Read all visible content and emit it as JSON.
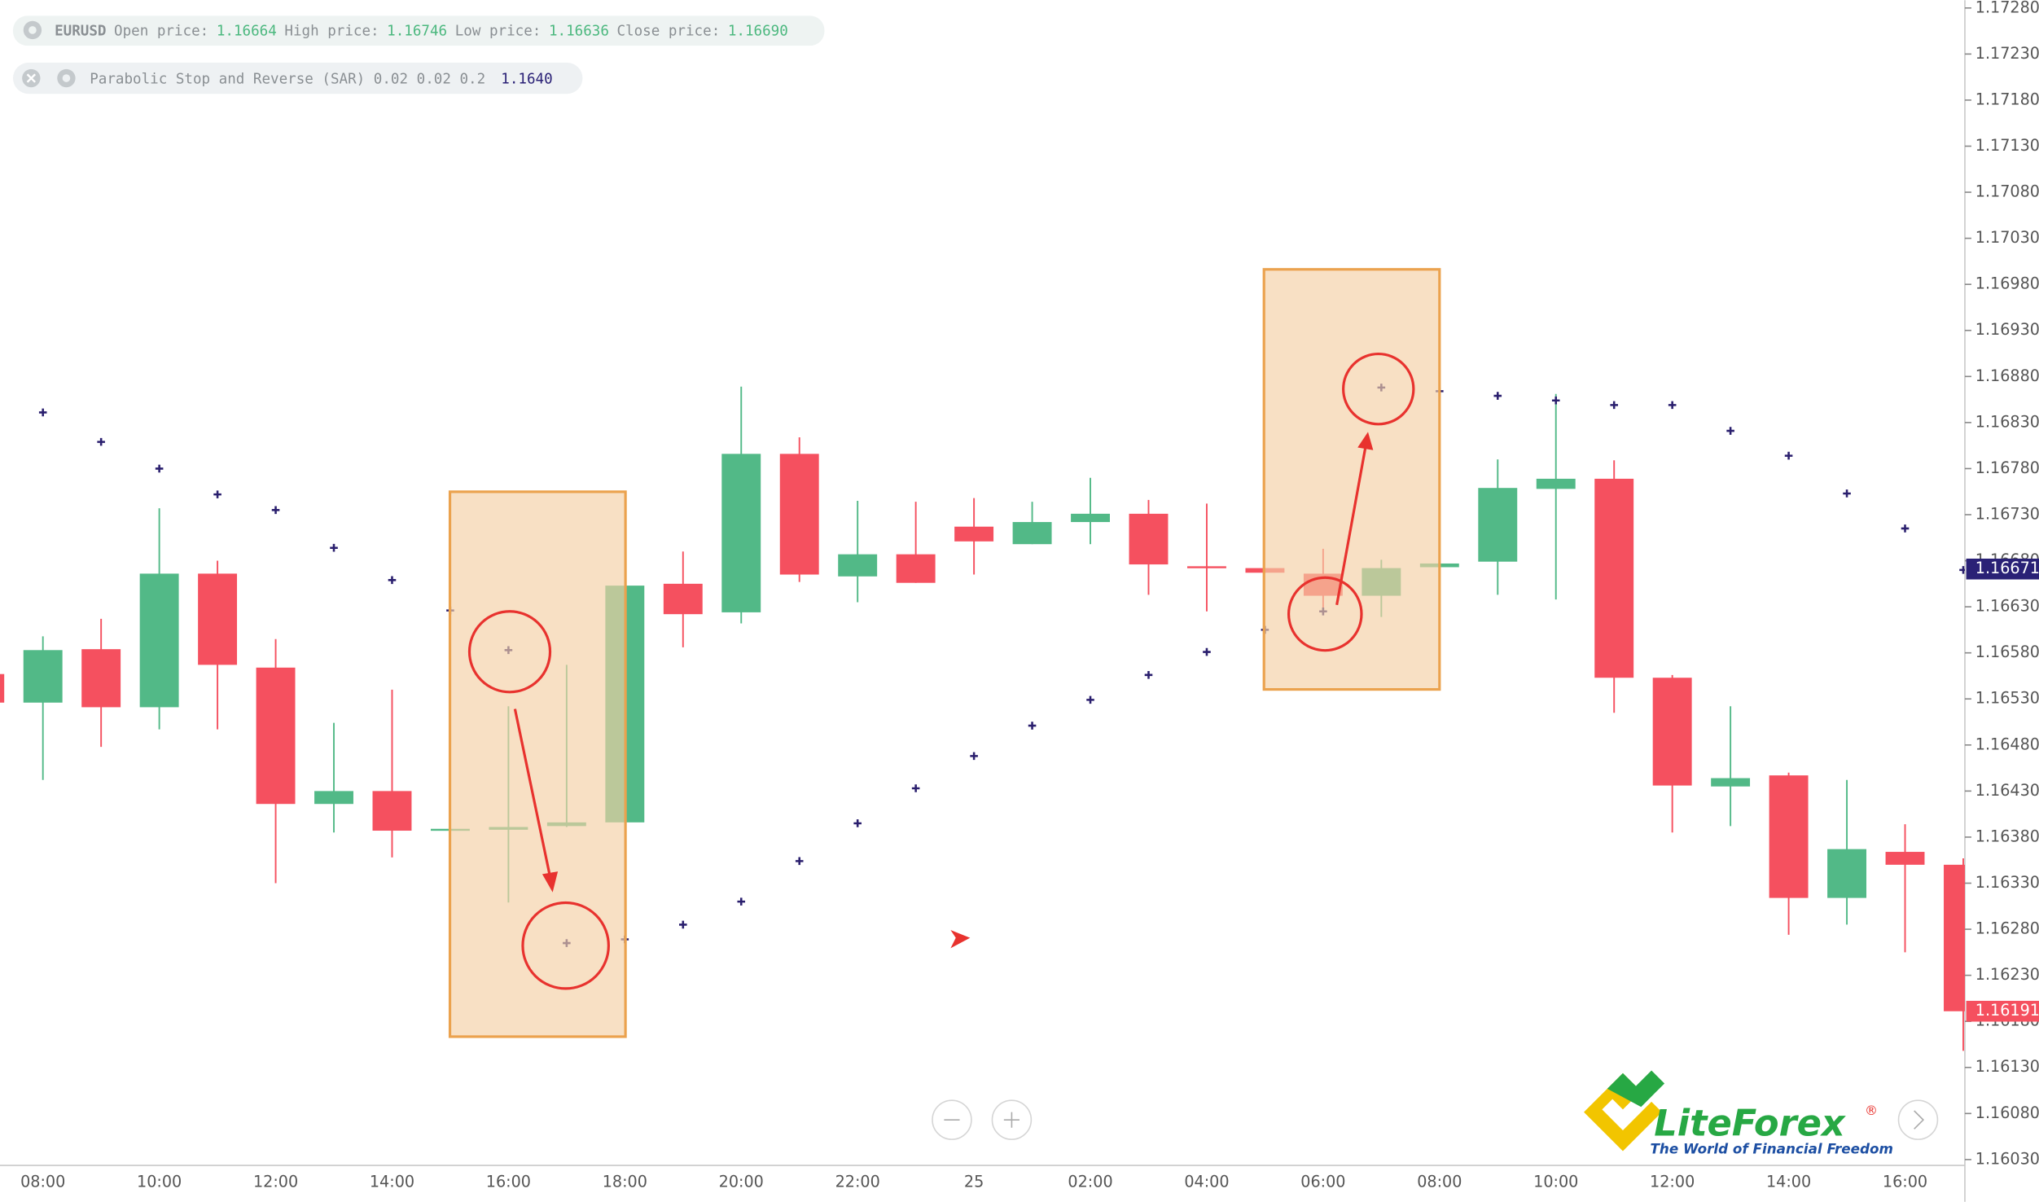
{
  "chart_data": {
    "type": "candlestick",
    "categories": [
      null,
      "08:00",
      null,
      "10:00",
      null,
      "12:00",
      null,
      "14:00",
      null,
      "16:00",
      null,
      "18:00",
      null,
      "20:00",
      null,
      "22:00",
      null,
      "25",
      null,
      "02:00",
      null,
      "04:00",
      null,
      "06:00",
      null,
      "08:00",
      null,
      "10:00",
      null,
      "12:00",
      null,
      "14:00",
      null,
      "16:00",
      null
    ],
    "series": [
      {
        "name": "EURUSD",
        "type": "candlestick",
        "up_color": "#52b987",
        "down_color": "#f5505f",
        "open": [
          1.16557,
          1.16526,
          1.16584,
          1.16521,
          1.16666,
          1.16564,
          1.16416,
          1.1643,
          1.16389,
          1.16388,
          1.16392,
          1.16396,
          1.16655,
          1.16624,
          1.16796,
          1.16663,
          1.16687,
          1.16717,
          1.16698,
          1.16722,
          1.16731,
          1.16674,
          1.16672,
          1.16666,
          1.16642,
          1.16673,
          1.16679,
          1.16758,
          1.16769,
          1.16553,
          1.16435,
          1.16447,
          1.16314,
          1.16364,
          1.1635
        ],
        "high": [
          1.16566,
          1.16598,
          1.16617,
          1.16737,
          1.1668,
          1.16595,
          1.16504,
          1.1654,
          1.16389,
          1.16522,
          1.16567,
          1.16653,
          1.1669,
          1.16869,
          1.16814,
          1.16745,
          1.16744,
          1.16748,
          1.16744,
          1.1677,
          1.16746,
          1.16742,
          1.16672,
          1.16693,
          1.16681,
          1.16677,
          1.1679,
          1.16861,
          1.16789,
          1.16556,
          1.16522,
          1.1645,
          1.16442,
          1.16394,
          1.16357
        ],
        "low": [
          1.16519,
          1.16442,
          1.16478,
          1.16497,
          1.16497,
          1.1633,
          1.16385,
          1.16358,
          1.16389,
          1.16309,
          1.16391,
          1.16396,
          1.16586,
          1.16612,
          1.16657,
          1.16635,
          1.16656,
          1.16665,
          1.16698,
          1.16698,
          1.16643,
          1.16625,
          1.16667,
          1.16621,
          1.16619,
          1.16673,
          1.16643,
          1.16638,
          1.16515,
          1.16385,
          1.16392,
          1.16274,
          1.16285,
          1.16255,
          1.16148
        ],
        "close": [
          1.16526,
          1.16583,
          1.16521,
          1.16666,
          1.16567,
          1.16416,
          1.1643,
          1.16387,
          1.16389,
          1.16391,
          1.16396,
          1.16653,
          1.16622,
          1.16796,
          1.16665,
          1.16687,
          1.16656,
          1.16701,
          1.16722,
          1.16731,
          1.16676,
          1.16672,
          1.16667,
          1.16642,
          1.16672,
          1.16677,
          1.16759,
          1.16769,
          1.16553,
          1.16436,
          1.16444,
          1.16314,
          1.16367,
          1.1635,
          1.16191
        ]
      },
      {
        "name": "Parabolic Stop and Reverse (SAR) 0.02 0.02 0.2",
        "type": "marker",
        "color": "#2a1f6e",
        "values": [
          null,
          1.16841,
          1.16809,
          1.1678,
          1.16752,
          1.16735,
          1.16694,
          1.16659,
          1.16626,
          1.16583,
          1.16265,
          1.16269,
          1.16285,
          1.1631,
          1.16354,
          1.16395,
          1.16433,
          1.16468,
          1.16501,
          1.16529,
          1.16556,
          1.16581,
          1.16605,
          1.16625,
          1.16868,
          1.16864,
          1.16859,
          1.16854,
          1.16849,
          1.16849,
          1.16821,
          1.16794,
          1.16753,
          1.16715,
          1.1667
        ]
      }
    ],
    "info": [
      {
        "label": "Open price:",
        "value": "1.16664"
      },
      {
        "label": "High price:",
        "value": "1.16746"
      },
      {
        "label": "Low price:",
        "value": "1.16636"
      },
      {
        "label": "Close price:",
        "value": "1.16690"
      }
    ],
    "indicator_value": "1.1640",
    "price_tags": [
      {
        "value": 1.16671,
        "color": "#2a2176"
      },
      {
        "value": 1.16191,
        "color": "#f5505f"
      }
    ],
    "ylim": [
      1.16023,
      1.17288
    ],
    "yticks": [
      {
        "value": 1.1603,
        "label": "1.16030"
      },
      {
        "value": 1.1608,
        "label": "1.16080"
      },
      {
        "value": 1.1613,
        "label": "1.16130"
      },
      {
        "value": 1.1618,
        "label": "1.16180"
      },
      {
        "value": 1.1623,
        "label": "1.16230"
      },
      {
        "value": 1.1628,
        "label": "1.16280"
      },
      {
        "value": 1.1633,
        "label": "1.16330"
      },
      {
        "value": 1.1638,
        "label": "1.16380"
      },
      {
        "value": 1.1643,
        "label": "1.16430"
      },
      {
        "value": 1.1648,
        "label": "1.16480"
      },
      {
        "value": 1.1653,
        "label": "1.16530"
      },
      {
        "value": 1.1658,
        "label": "1.16580"
      },
      {
        "value": 1.1663,
        "label": "1.16630"
      },
      {
        "value": 1.1668,
        "label": "1.16680"
      },
      {
        "value": 1.1673,
        "label": "1.16730"
      },
      {
        "value": 1.1678,
        "label": "1.16780"
      },
      {
        "value": 1.1683,
        "label": "1.16830"
      },
      {
        "value": 1.1688,
        "label": "1.16880"
      },
      {
        "value": 1.1693,
        "label": "1.16930"
      },
      {
        "value": 1.1698,
        "label": "1.16980"
      },
      {
        "value": 1.1703,
        "label": "1.17030"
      },
      {
        "value": 1.1708,
        "label": "1.17080"
      },
      {
        "value": 1.1713,
        "label": "1.17130"
      },
      {
        "value": 1.1718,
        "label": "1.17180"
      },
      {
        "value": 1.1723,
        "label": "1.17230"
      },
      {
        "value": 1.1728,
        "label": "1.17280"
      }
    ]
  },
  "logo": {
    "name": "LiteForex",
    "mark": "®",
    "tagline": "The World of Financial Freedom"
  }
}
